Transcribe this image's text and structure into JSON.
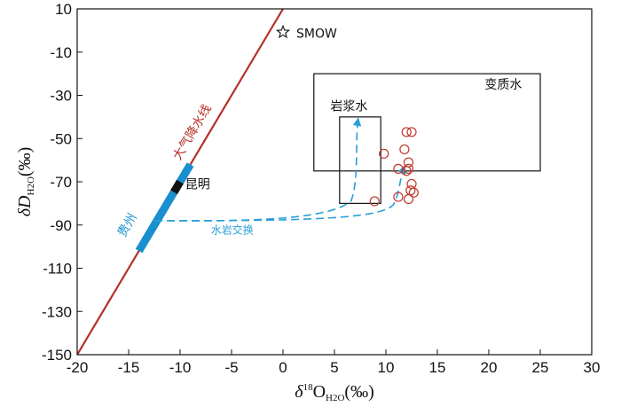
{
  "chart_data": {
    "type": "scatter",
    "title": "",
    "xlabel": {
      "prefix": "δ",
      "sup": "18",
      "main": "O",
      "sub": "H2O",
      "suffix": "(‰)"
    },
    "ylabel": {
      "prefix": "δ",
      "main": "D",
      "sub": "H2O",
      "suffix": "(‰)"
    },
    "xlim": [
      -20,
      30
    ],
    "ylim": [
      -150,
      10
    ],
    "xticks": [
      -20,
      -15,
      -10,
      -5,
      0,
      5,
      10,
      15,
      20,
      25,
      30
    ],
    "yticks": [
      -150,
      -130,
      -110,
      -90,
      -70,
      -50,
      -30,
      -10,
      10
    ],
    "grid": false,
    "colors": {
      "gmwl": "#b5302a",
      "guizhou": "#1a8fcf",
      "kunming": "#111111",
      "samples": "#c0392b",
      "exchange": "#2a9fd6",
      "box": "#111111"
    },
    "gmwl": {
      "label": "大气降水线",
      "slope": 8,
      "intercept": 10
    },
    "guizhou_segment": {
      "label": "贵州",
      "x": [
        -14,
        -9
      ],
      "y": [
        -102,
        -62
      ]
    },
    "kunming_segment": {
      "label": "昆明",
      "x": [
        -10.6,
        -10.0
      ],
      "y": [
        -74.8,
        -70
      ]
    },
    "smow": {
      "label": "SMOW",
      "x": 0,
      "y": 0
    },
    "boxes": [
      {
        "label": "变质水",
        "x": [
          3,
          25
        ],
        "y": [
          -65,
          -20
        ]
      },
      {
        "label": "岩浆水",
        "x": [
          5.5,
          9.5
        ],
        "y": [
          -80,
          -40
        ]
      }
    ],
    "exchange_label": "水岩交换",
    "samples": [
      {
        "x": 12.0,
        "y": -47
      },
      {
        "x": 12.5,
        "y": -47
      },
      {
        "x": 9.8,
        "y": -57
      },
      {
        "x": 11.8,
        "y": -55
      },
      {
        "x": 12.2,
        "y": -61
      },
      {
        "x": 11.2,
        "y": -64
      },
      {
        "x": 12.2,
        "y": -64
      },
      {
        "x": 12.0,
        "y": -65
      },
      {
        "x": 12.5,
        "y": -71
      },
      {
        "x": 12.4,
        "y": -74
      },
      {
        "x": 12.7,
        "y": -75
      },
      {
        "x": 11.2,
        "y": -77
      },
      {
        "x": 12.2,
        "y": -78
      },
      {
        "x": 8.9,
        "y": -79
      }
    ]
  }
}
